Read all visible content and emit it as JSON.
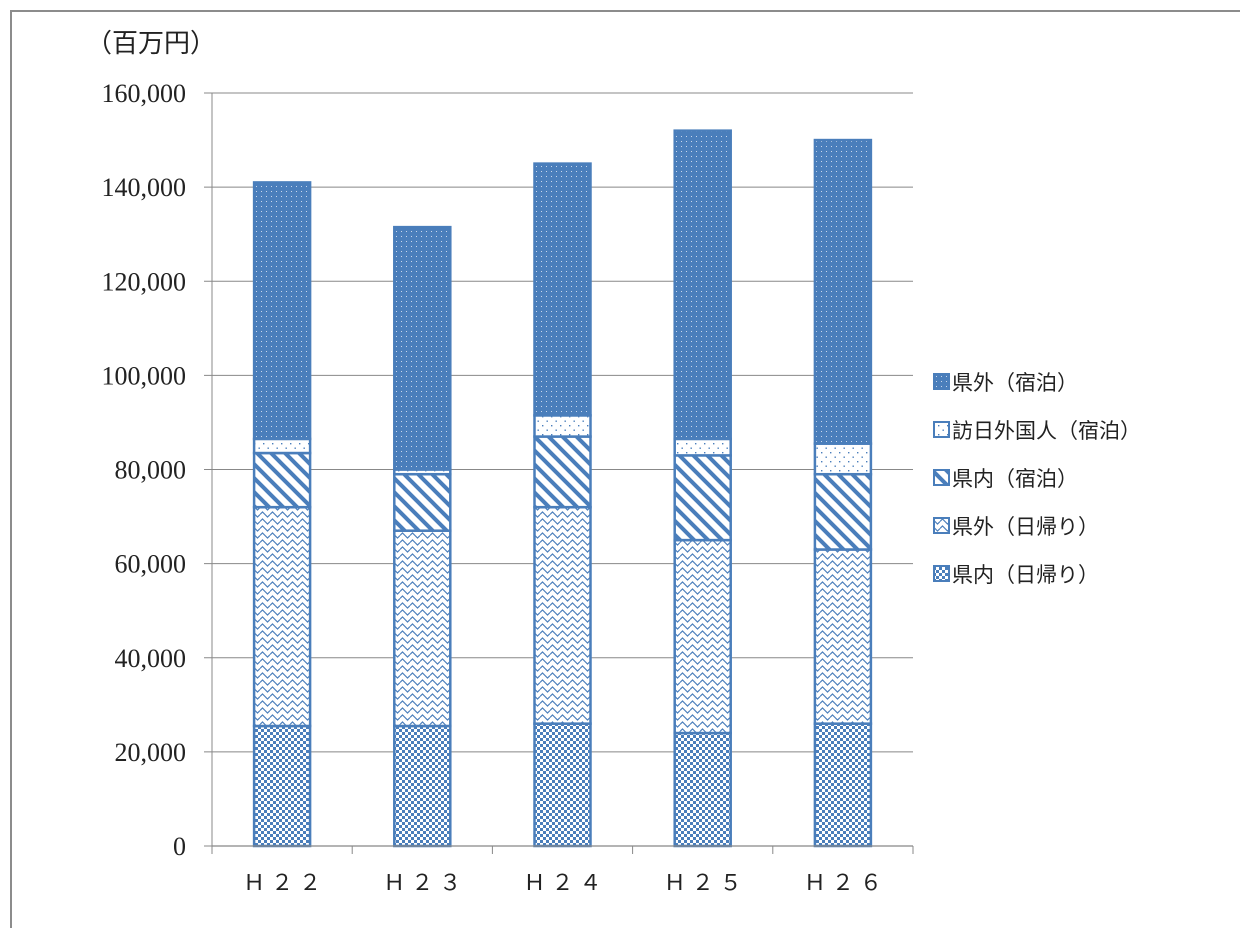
{
  "chart_data": {
    "type": "bar",
    "stacked": true,
    "unit_label": "（百万円）",
    "categories": [
      "Ｈ２２",
      "Ｈ２３",
      "Ｈ２４",
      "Ｈ２５",
      "Ｈ２６"
    ],
    "ylim": [
      0,
      160000
    ],
    "yticks": [
      0,
      20000,
      40000,
      60000,
      80000,
      100000,
      120000,
      140000,
      160000
    ],
    "ytick_labels": [
      "0",
      "20,000",
      "40,000",
      "60,000",
      "80,000",
      "100,000",
      "120,000",
      "140,000",
      "160,000"
    ],
    "grid": true,
    "legend_position": "right",
    "series": [
      {
        "name": "県内（日帰り）",
        "values": [
          25500,
          25500,
          26000,
          24000,
          26000
        ],
        "pattern": "checker"
      },
      {
        "name": "県外（日帰り）",
        "values": [
          46500,
          41500,
          46000,
          41000,
          37000
        ],
        "pattern": "wave"
      },
      {
        "name": "県内（宿泊）",
        "values": [
          11500,
          12000,
          15000,
          18000,
          16000
        ],
        "pattern": "diagonal"
      },
      {
        "name": "訪日外国人（宿泊）",
        "values": [
          3000,
          1000,
          4500,
          3500,
          6500
        ],
        "pattern": "sparse-dots"
      },
      {
        "name": "県外（宿泊）",
        "values": [
          54500,
          51500,
          53500,
          65500,
          64500
        ],
        "pattern": "solid-dots"
      }
    ],
    "legend_order": [
      "県外（宿泊）",
      "訪日外国人（宿泊）",
      "県内（宿泊）",
      "県外（日帰り）",
      "県内（日帰り）"
    ],
    "colors": {
      "bar": "#4a7ebb",
      "grid": "#888888",
      "text": "#222222"
    }
  }
}
